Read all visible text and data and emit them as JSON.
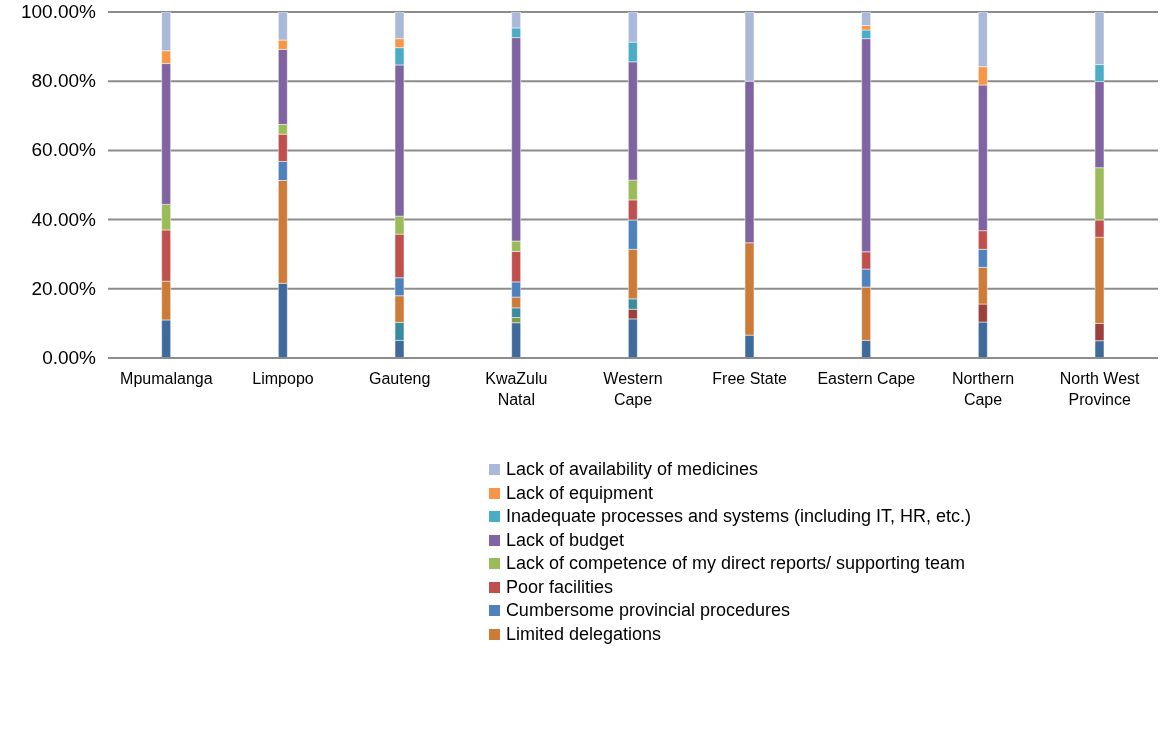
{
  "chart_data": {
    "type": "bar",
    "stacked": true,
    "categories": [
      "Mpumalanga",
      "Limpopo",
      "Gauteng",
      "KwaZulu Natal",
      "Western Cape",
      "Free State",
      "Eastern Cape",
      "Northern Cape",
      "North West Province"
    ],
    "series": [
      {
        "color": "#3f6a9c",
        "values": [
          11.0,
          21.6,
          5.1,
          10.2,
          11.3,
          6.6,
          5.1,
          10.4,
          5.0
        ]
      },
      {
        "color": "#7f9a48",
        "values": [
          null,
          null,
          null,
          1.5,
          null,
          null,
          null,
          null,
          null
        ]
      },
      {
        "color": "#9c403e",
        "values": [
          null,
          null,
          null,
          null,
          2.8,
          null,
          null,
          5.2,
          5.0
        ]
      },
      {
        "color": "#3a8ba0",
        "values": [
          null,
          null,
          5.2,
          2.8,
          3.0,
          null,
          null,
          null,
          null
        ]
      },
      {
        "name": "Limited delegations",
        "color": "#cc7b38",
        "values": [
          11.2,
          29.7,
          7.7,
          3.1,
          14.3,
          26.7,
          15.4,
          10.6,
          24.9
        ]
      },
      {
        "name": "Cumbersome provincial procedures",
        "color": "#4f81bd",
        "values": [
          null,
          5.5,
          5.2,
          4.4,
          8.5,
          null,
          5.2,
          5.2,
          null
        ]
      },
      {
        "name": "Poor facilities",
        "color": "#c0504d",
        "values": [
          14.8,
          7.9,
          12.6,
          8.8,
          5.8,
          null,
          5.0,
          5.4,
          5.0
        ]
      },
      {
        "name": "Lack of competence of my direct reports/ supporting team",
        "color": "#9bbb59",
        "values": [
          7.4,
          2.8,
          5.2,
          3.0,
          5.7,
          null,
          null,
          null,
          15.1
        ]
      },
      {
        "name": "Lack of budget",
        "color": "#8064a2",
        "values": [
          40.7,
          21.7,
          43.7,
          58.8,
          34.2,
          46.7,
          61.6,
          42.1,
          24.9
        ]
      },
      {
        "name": "Inadequate processes and systems (including IT, HR, etc.)",
        "color": "#4bacc6",
        "values": [
          null,
          null,
          5.0,
          2.8,
          5.7,
          null,
          2.5,
          null,
          4.9
        ]
      },
      {
        "name": "Lack of equipment",
        "color": "#f79646",
        "values": [
          3.7,
          2.7,
          2.6,
          null,
          null,
          null,
          1.3,
          5.3,
          null
        ]
      },
      {
        "name": "Lack of availability of medicines",
        "color": "#aab9d7",
        "values": [
          11.2,
          8.1,
          7.7,
          4.6,
          8.7,
          20.0,
          3.9,
          15.8,
          15.2
        ]
      }
    ],
    "ylim": [
      0,
      100
    ],
    "yticks": [
      {
        "value": 0,
        "label": "0.00%"
      },
      {
        "value": 20,
        "label": "20.00%"
      },
      {
        "value": 40,
        "label": "40.00%"
      },
      {
        "value": 60,
        "label": "60.00%"
      },
      {
        "value": 80,
        "label": "80.00%"
      },
      {
        "value": 100,
        "label": "100.00%"
      }
    ],
    "grid": "y",
    "legend": "bottom"
  }
}
